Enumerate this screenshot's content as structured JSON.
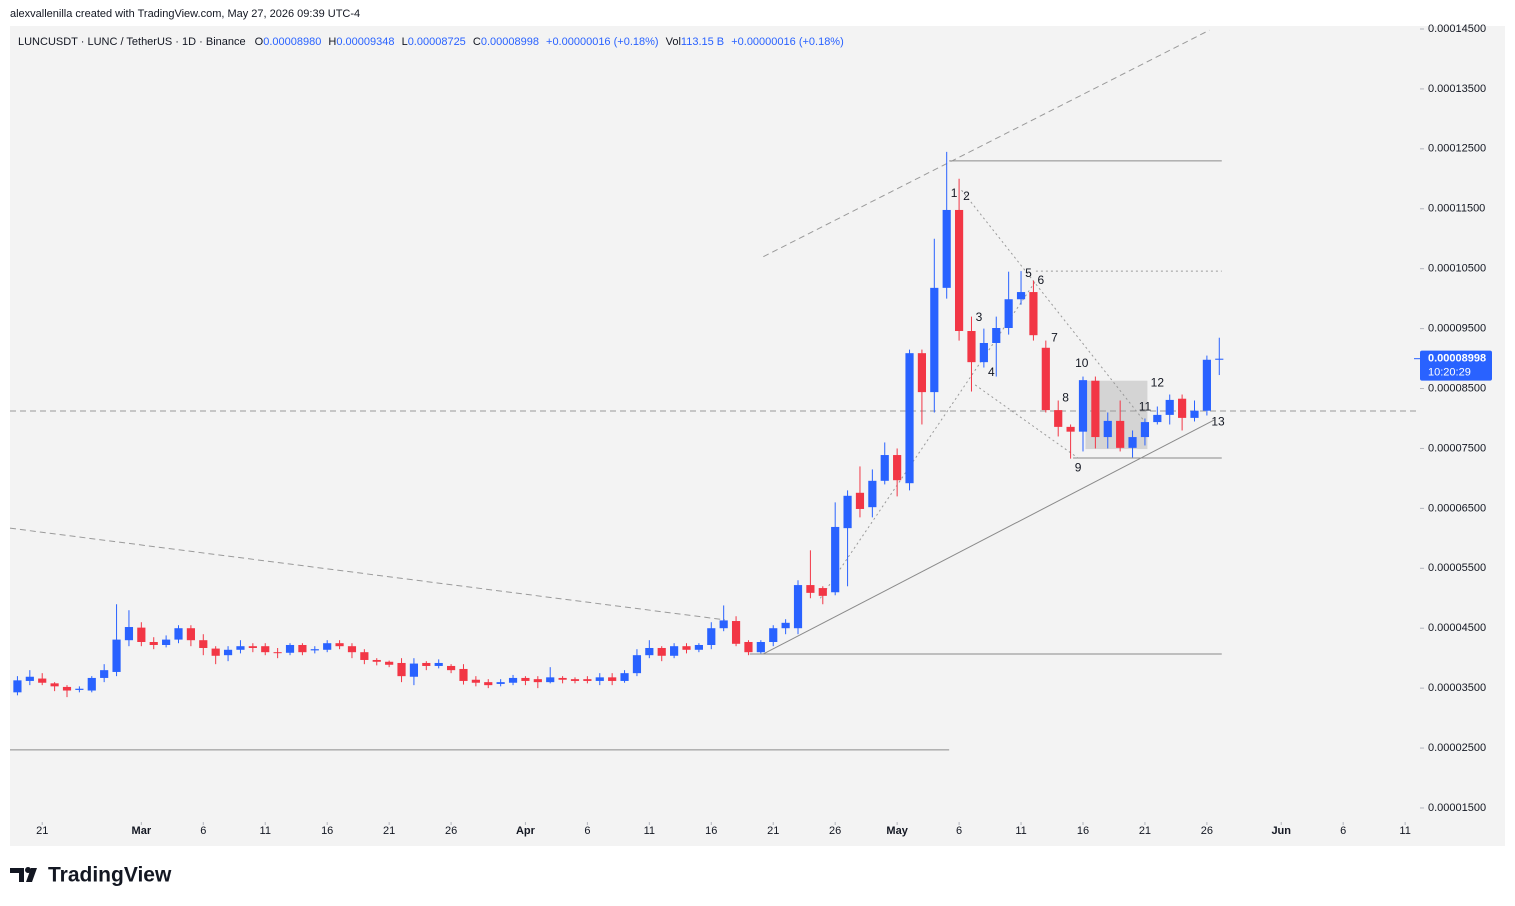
{
  "header": {
    "author": "alexvallenilla created with TradingView.com, May 27, 2026 09:39 UTC-4"
  },
  "legend": {
    "symbol": "LUNCUSDT · LUNC / TetherUS · 1D · Binance",
    "open_label": "O",
    "open": "0.00008980",
    "high_label": "H",
    "high": "0.00009348",
    "low_label": "L",
    "low": "0.00008725",
    "close_label": "C",
    "close": "0.00008998",
    "change": "+0.00000016 (+0.18%)",
    "volume_label": "Vol",
    "volume": "113.15 B",
    "volume_change": "+0.00000016 (+0.18%)"
  },
  "price_label": {
    "price": "0.00008998",
    "countdown": "10:20:29"
  },
  "footer": {
    "logo": "TradingView"
  },
  "chart_data": {
    "type": "candlestick",
    "up_color": "#2962ff",
    "down_color": "#f23645",
    "open": [
      3.43e-05,
      3.62e-05,
      3.66e-05,
      3.58e-05,
      3.52e-05,
      3.47e-05,
      3.46e-05,
      3.67e-05,
      3.77e-05,
      4.3e-05,
      4.51e-05,
      4.27e-05,
      4.22e-05,
      4.31e-05,
      4.5e-05,
      4.3e-05,
      4.16e-05,
      4.05e-05,
      4.14e-05,
      4.2e-05,
      4.2e-05,
      4.1e-05,
      4.09e-05,
      4.22e-05,
      4.13e-05,
      4.14e-05,
      4.25e-05,
      4.2e-05,
      4.1e-05,
      3.97e-05,
      3.94e-05,
      3.92e-05,
      3.69e-05,
      3.92e-05,
      3.87e-05,
      3.87e-05,
      3.82e-05,
      3.64e-05,
      3.6e-05,
      3.57e-05,
      3.59e-05,
      3.67e-05,
      3.65e-05,
      3.6e-05,
      3.67e-05,
      3.65e-05,
      3.65e-05,
      3.62e-05,
      3.68e-05,
      3.62e-05,
      3.75e-05,
      4.05e-05,
      4.17e-05,
      4.04e-05,
      4.2e-05,
      4.14e-05,
      4.22e-05,
      4.5e-05,
      4.62e-05,
      4.27e-05,
      4.1e-05,
      4.27e-05,
      4.5e-05,
      4.5e-05,
      5.22e-05,
      5.17e-05,
      5.1e-05,
      6.17e-05,
      6.76e-05,
      6.52e-05,
      6.96e-05,
      7.39e-05,
      6.92e-05,
      9.09e-05,
      8.44e-05,
      0.0001018,
      0.0001148,
      9.46e-05,
      8.94e-05,
      9.26e-05,
      9.51e-05,
      9.99e-05,
      0.0001011,
      9.18e-05,
      8.14e-05,
      7.86e-05,
      7.78e-05,
      8.63e-05,
      7.69e-05,
      7.96e-05,
      7.51e-05,
      7.69e-05,
      7.94e-05,
      8.06e-05,
      8.33e-05,
      8.01e-05,
      8.13e-05,
      8.98e-05
    ],
    "high": [
      3.7e-05,
      3.8e-05,
      3.75e-05,
      3.6e-05,
      3.55e-05,
      3.53e-05,
      3.7e-05,
      3.9e-05,
      4.9e-05,
      4.8e-05,
      4.6e-05,
      4.35e-05,
      4.38e-05,
      4.55e-05,
      4.55e-05,
      4.4e-05,
      4.2e-05,
      4.2e-05,
      4.3e-05,
      4.25e-05,
      4.25e-05,
      4.17e-05,
      4.25e-05,
      4.25e-05,
      4.2e-05,
      4.3e-05,
      4.3e-05,
      4.25e-05,
      4.15e-05,
      4e-05,
      3.96e-05,
      4e-05,
      4e-05,
      3.95e-05,
      3.98e-05,
      3.9e-05,
      3.9e-05,
      3.7e-05,
      3.65e-05,
      3.65e-05,
      3.72e-05,
      3.7e-05,
      3.7e-05,
      3.85e-05,
      3.7e-05,
      3.68e-05,
      3.7e-05,
      3.75e-05,
      3.75e-05,
      3.8e-05,
      4.15e-05,
      4.3e-05,
      4.2e-05,
      4.25e-05,
      4.25e-05,
      4.25e-05,
      4.6e-05,
      4.88e-05,
      4.7e-05,
      4.3e-05,
      4.3e-05,
      4.55e-05,
      4.65e-05,
      5.3e-05,
      5.8e-05,
      5.2e-05,
      6.6e-05,
      6.8e-05,
      7.2e-05,
      7.15e-05,
      7.6e-05,
      7.5e-05,
      9.15e-05,
      9.15e-05,
      0.00011,
      0.0001245,
      0.00012,
      9.7e-05,
      9.5e-05,
      9.7e-05,
      0.0001045,
      0.0001046,
      0.000103,
      9.3e-05,
      8.3e-05,
      7.9e-05,
      8.7e-05,
      8.7e-05,
      8.1e-05,
      8.3e-05,
      7.8e-05,
      8e-05,
      8.2e-05,
      8.4e-05,
      8.4e-05,
      8.3e-05,
      9.05e-05,
      9.348e-05
    ],
    "low": [
      3.38e-05,
      3.55e-05,
      3.55e-05,
      3.45e-05,
      3.35e-05,
      3.43e-05,
      3.43e-05,
      3.6e-05,
      3.7e-05,
      4.2e-05,
      4.2e-05,
      4.15e-05,
      4.18e-05,
      4.25e-05,
      4.2e-05,
      4.05e-05,
      3.9e-05,
      3.95e-05,
      4.08e-05,
      4.1e-05,
      4.05e-05,
      4e-05,
      4.05e-05,
      4.05e-05,
      4.08e-05,
      4.1e-05,
      4.15e-05,
      4e-05,
      3.9e-05,
      3.88e-05,
      3.85e-05,
      3.6e-05,
      3.55e-05,
      3.8e-05,
      3.83e-05,
      3.75e-05,
      3.56e-05,
      3.53e-05,
      3.5e-05,
      3.53e-05,
      3.55e-05,
      3.55e-05,
      3.5e-05,
      3.58e-05,
      3.58e-05,
      3.58e-05,
      3.58e-05,
      3.55e-05,
      3.55e-05,
      3.59e-05,
      3.7e-05,
      4e-05,
      3.95e-05,
      4e-05,
      4.08e-05,
      4.1e-05,
      4.15e-05,
      4.45e-05,
      4.2e-05,
      4.05e-05,
      4.08e-05,
      4.2e-05,
      4.4e-05,
      4.4e-05,
      5e-05,
      4.9e-05,
      5.05e-05,
      5.2e-05,
      6.35e-05,
      6.35e-05,
      6.9e-05,
      6.7e-05,
      6.8e-05,
      7.9e-05,
      8.1e-05,
      0.0001,
      9.3e-05,
      8.45e-05,
      8.85e-05,
      8.7e-05,
      9.4e-05,
      9.9e-05,
      9.3e-05,
      8.1e-05,
      7.7e-05,
      7.33e-05,
      7.45e-05,
      7.5e-05,
      7.5e-05,
      7.45e-05,
      7.35e-05,
      7.55e-05,
      7.9e-05,
      7.9e-05,
      7.8e-05,
      7.95e-05,
      8.05e-05,
      8.725e-05
    ],
    "close": [
      3.63e-05,
      3.69e-05,
      3.59e-05,
      3.53e-05,
      3.46e-05,
      3.49e-05,
      3.67e-05,
      3.8e-05,
      4.31e-05,
      4.52e-05,
      4.27e-05,
      4.22e-05,
      4.31e-05,
      4.5e-05,
      4.3e-05,
      4.17e-05,
      4.04e-05,
      4.14e-05,
      4.2e-05,
      4.17e-05,
      4.1e-05,
      4.09e-05,
      4.22e-05,
      4.1e-05,
      4.15e-05,
      4.25e-05,
      4.2e-05,
      4.1e-05,
      3.97e-05,
      3.94e-05,
      3.89e-05,
      3.7e-05,
      3.91e-05,
      3.87e-05,
      3.92e-05,
      3.8e-05,
      3.62e-05,
      3.59e-05,
      3.55e-05,
      3.6e-05,
      3.67e-05,
      3.62e-05,
      3.6e-05,
      3.68e-05,
      3.64e-05,
      3.62e-05,
      3.62e-05,
      3.68e-05,
      3.62e-05,
      3.75e-05,
      4.05e-05,
      4.17e-05,
      4.04e-05,
      4.2e-05,
      4.14e-05,
      4.22e-05,
      4.5e-05,
      4.63e-05,
      4.24e-05,
      4.1e-05,
      4.27e-05,
      4.5e-05,
      4.59e-05,
      5.22e-05,
      5.09e-05,
      5.04e-05,
      6.19e-05,
      6.71e-05,
      6.49e-05,
      6.96e-05,
      7.39e-05,
      6.97e-05,
      9.09e-05,
      8.44e-05,
      0.0001018,
      0.0001148,
      9.46e-05,
      8.94e-05,
      9.26e-05,
      9.51e-05,
      9.99e-05,
      0.0001011,
      9.39e-05,
      8.14e-05,
      7.86e-05,
      7.78e-05,
      8.64e-05,
      7.69e-05,
      7.96e-05,
      7.51e-05,
      7.69e-05,
      7.94e-05,
      8.06e-05,
      8.31e-05,
      8.01e-05,
      8.13e-05,
      8.98e-05,
      8.998e-05
    ],
    "xlim": [
      -0.6,
      113.2
    ],
    "xticks": [
      {
        "value": 2,
        "label": "21"
      },
      {
        "value": 10,
        "label": "Mar"
      },
      {
        "value": 15,
        "label": "6"
      },
      {
        "value": 20,
        "label": "11"
      },
      {
        "value": 25,
        "label": "16"
      },
      {
        "value": 30,
        "label": "21"
      },
      {
        "value": 35,
        "label": "26"
      },
      {
        "value": 41,
        "label": "Apr"
      },
      {
        "value": 46,
        "label": "6"
      },
      {
        "value": 51,
        "label": "11"
      },
      {
        "value": 56,
        "label": "16"
      },
      {
        "value": 61,
        "label": "21"
      },
      {
        "value": 66,
        "label": "26"
      },
      {
        "value": 71,
        "label": "May"
      },
      {
        "value": 76,
        "label": "6"
      },
      {
        "value": 81,
        "label": "11"
      },
      {
        "value": 86,
        "label": "16"
      },
      {
        "value": 91,
        "label": "21"
      },
      {
        "value": 96,
        "label": "26"
      },
      {
        "value": 102,
        "label": "Jun"
      },
      {
        "value": 107,
        "label": "6"
      },
      {
        "value": 112,
        "label": "11"
      }
    ],
    "ylim": [
      1.266e-05,
      0.0001455
    ],
    "yticks": [
      {
        "value": 1.5e-05,
        "label": "0.00001500"
      },
      {
        "value": 2.5e-05,
        "label": "0.00002500"
      },
      {
        "value": 3.5e-05,
        "label": "0.00003500"
      },
      {
        "value": 4.5e-05,
        "label": "0.00004500"
      },
      {
        "value": 5.5e-05,
        "label": "0.00005500"
      },
      {
        "value": 6.5e-05,
        "label": "0.00006500"
      },
      {
        "value": 7.5e-05,
        "label": "0.00007500"
      },
      {
        "value": 8.5e-05,
        "label": "0.00008500"
      },
      {
        "value": 9.5e-05,
        "label": "0.00009500"
      },
      {
        "value": 0.000105,
        "label": "0.00010500"
      },
      {
        "value": 0.000115,
        "label": "0.00011500"
      },
      {
        "value": 0.000125,
        "label": "0.00012500"
      },
      {
        "value": 0.000135,
        "label": "0.00013500"
      },
      {
        "value": 0.000145,
        "label": "0.00014500"
      }
    ],
    "drawings": [
      {
        "style": "dashed",
        "x": [
          -0.6,
          113.2
        ],
        "y": [
          8.125e-05,
          8.125e-05
        ]
      },
      {
        "style": "solid",
        "x": [
          75.2,
          97.2
        ],
        "y": [
          0.000123,
          0.000123
        ]
      },
      {
        "style": "dotted",
        "x": [
          82.2,
          97.2
        ],
        "y": [
          0.0001046,
          0.0001046
        ]
      },
      {
        "style": "solid",
        "x": [
          85.2,
          97.2
        ],
        "y": [
          7.34e-05,
          7.34e-05
        ]
      },
      {
        "style": "solid",
        "x": [
          59.1,
          97.2
        ],
        "y": [
          4.07e-05,
          4.07e-05
        ]
      },
      {
        "style": "solid",
        "x": [
          -0.6,
          75.2
        ],
        "y": [
          2.47e-05,
          2.47e-05
        ]
      },
      {
        "style": "dashed",
        "x": [
          -0.6,
          57.1
        ],
        "y": [
          6.17e-05,
          4.64e-05
        ]
      },
      {
        "style": "dashed",
        "x": [
          60.2,
          96.2
        ],
        "y": [
          0.000107,
          0.0001448
        ]
      },
      {
        "style": "solid",
        "x": [
          60.2,
          96.6
        ],
        "y": [
          4.07e-05,
          7.975e-05
        ]
      },
      {
        "style": "dotted",
        "x": [
          64.8,
          82.2
        ],
        "y": [
          5e-05,
          0.000103
        ]
      },
      {
        "style": "dotted",
        "x": [
          76.2,
          91.2
        ],
        "y": [
          0.0001181,
          7.89e-05
        ]
      },
      {
        "style": "dotted",
        "x": [
          77.3,
          85.6
        ],
        "y": [
          8.56e-05,
          7.34e-05
        ]
      }
    ],
    "boxes": [
      {
        "x": [
          86.2,
          91.2
        ],
        "y": [
          7.49e-05,
          8.63e-05
        ]
      }
    ],
    "annotations": [
      {
        "text": "1",
        "x": 75.6,
        "y": 0.0001175
      },
      {
        "text": "2",
        "x": 76.6,
        "y": 0.000117
      },
      {
        "text": "3",
        "x": 77.6,
        "y": 9.68e-05
      },
      {
        "text": "4",
        "x": 78.6,
        "y": 8.76e-05
      },
      {
        "text": "5",
        "x": 81.6,
        "y": 0.0001041
      },
      {
        "text": "6",
        "x": 82.6,
        "y": 0.000103
      },
      {
        "text": "7",
        "x": 83.7,
        "y": 9.34e-05
      },
      {
        "text": "8",
        "x": 84.6,
        "y": 8.34e-05
      },
      {
        "text": "9",
        "x": 85.6,
        "y": 7.17e-05
      },
      {
        "text": "10",
        "x": 85.9,
        "y": 8.91e-05
      },
      {
        "text": "11",
        "x": 91,
        "y": 8.19e-05
      },
      {
        "text": "12",
        "x": 92,
        "y": 8.59e-05
      },
      {
        "text": "13",
        "x": 96.9,
        "y": 7.94e-05
      }
    ]
  }
}
